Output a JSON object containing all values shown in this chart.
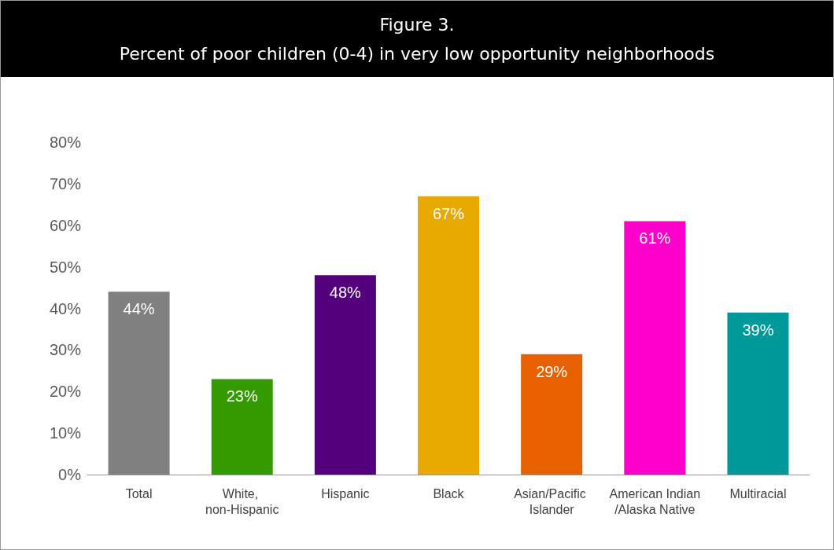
{
  "chart_data": {
    "type": "bar",
    "title": "Figure 3.",
    "subtitle": "Percent of poor children (0-4) in very low opportunity neighborhoods",
    "categories": [
      "Total",
      "White, non-Hispanic",
      "Hispanic",
      "Black",
      "Asian/Pacific Islander",
      "American Indian/Alaska Native",
      "Multiracial"
    ],
    "values": [
      44,
      23,
      48,
      67,
      29,
      61,
      39
    ],
    "colors": [
      "#808080",
      "#339a00",
      "#54007c",
      "#e8a900",
      "#e86100",
      "#ff00cc",
      "#009999"
    ],
    "value_labels": [
      "44%",
      "23%",
      "48%",
      "67%",
      "29%",
      "61%",
      "39%"
    ],
    "ylim": [
      0,
      80
    ],
    "yticks": [
      {
        "value": 0,
        "label": "0%"
      },
      {
        "value": 10,
        "label": "10%"
      },
      {
        "value": 20,
        "label": "20%"
      },
      {
        "value": 30,
        "label": "30%"
      },
      {
        "value": 40,
        "label": "40%"
      },
      {
        "value": 50,
        "label": "50%"
      },
      {
        "value": 60,
        "label": "60%"
      },
      {
        "value": 70,
        "label": "70%"
      },
      {
        "value": 80,
        "label": "80%"
      }
    ],
    "orientation": "vertical"
  }
}
